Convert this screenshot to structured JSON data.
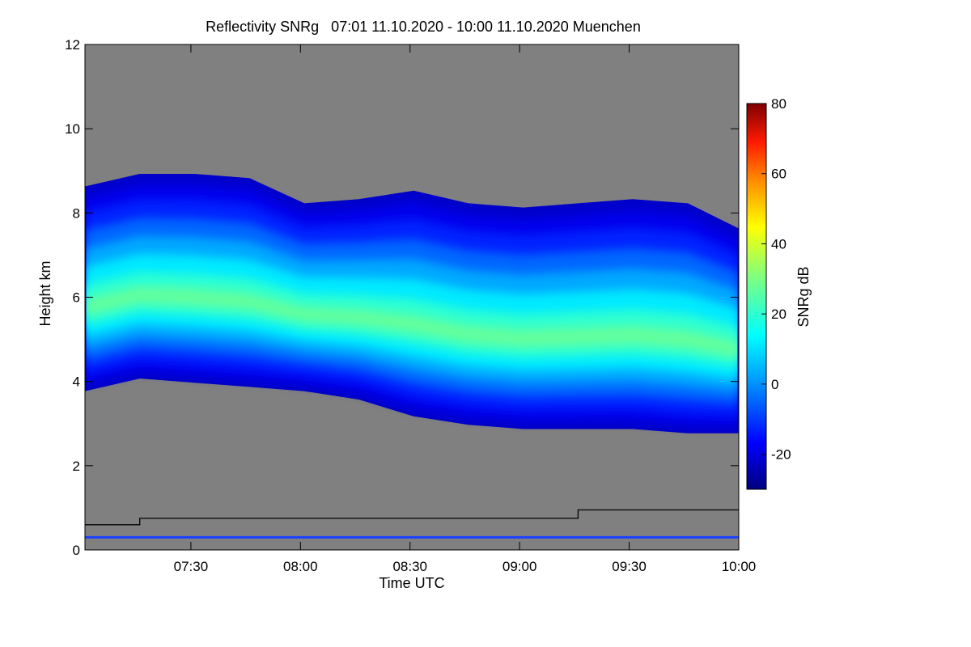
{
  "chart_data": {
    "type": "heatmap",
    "title": "Reflectivity SNRg   07:01 11.10.2020 - 10:00 11.10.2020 Muenchen",
    "xlabel": "Time UTC",
    "ylabel": "Height km",
    "x_range": [
      "07:01",
      "10:00"
    ],
    "xlim_minutes": [
      421,
      600
    ],
    "x_ticks": [
      {
        "label": "07:30",
        "minutes": 450
      },
      {
        "label": "08:00",
        "minutes": 480
      },
      {
        "label": "08:30",
        "minutes": 510
      },
      {
        "label": "09:00",
        "minutes": 540
      },
      {
        "label": "09:30",
        "minutes": 570
      },
      {
        "label": "10:00",
        "minutes": 600
      }
    ],
    "ylim": [
      0,
      12
    ],
    "y_ticks": [
      {
        "label": "0",
        "value": 0
      },
      {
        "label": "2",
        "value": 2
      },
      {
        "label": "4",
        "value": 4
      },
      {
        "label": "6",
        "value": 6
      },
      {
        "label": "8",
        "value": 8
      },
      {
        "label": "10",
        "value": 10
      },
      {
        "label": "12",
        "value": 12
      }
    ],
    "colorbar": {
      "label": "SNRg dB",
      "range": [
        -30,
        80
      ],
      "ticks": [
        {
          "label": "-20",
          "value": -20
        },
        {
          "label": "0",
          "value": 0
        },
        {
          "label": "20",
          "value": 20
        },
        {
          "label": "40",
          "value": 40
        },
        {
          "label": "60",
          "value": 60
        },
        {
          "label": "80",
          "value": 80
        }
      ],
      "colormap": "jet"
    },
    "background_color": "#808080",
    "cloud_layer": {
      "times_minutes": [
        421,
        436,
        451,
        466,
        481,
        496,
        511,
        526,
        541,
        556,
        571,
        586,
        600
      ],
      "top_km": [
        8.6,
        8.9,
        8.9,
        8.8,
        8.2,
        8.3,
        8.5,
        8.2,
        8.1,
        8.2,
        8.3,
        8.2,
        7.6
      ],
      "base_km": [
        3.8,
        4.1,
        4.0,
        3.9,
        3.8,
        3.6,
        3.2,
        3.0,
        2.9,
        2.9,
        2.9,
        2.8,
        2.8
      ],
      "peak_snr_db": [
        14,
        17,
        19,
        21,
        23,
        25,
        27,
        26,
        25,
        24,
        23,
        22,
        19
      ]
    },
    "overlay_line": {
      "color": "#000000",
      "steps": [
        {
          "from_minutes": 421,
          "to_minutes": 436,
          "height_km": 0.6
        },
        {
          "from_minutes": 436,
          "to_minutes": 481,
          "height_km": 0.75
        },
        {
          "from_minutes": 481,
          "to_minutes": 556,
          "height_km": 0.75
        },
        {
          "from_minutes": 556,
          "to_minutes": 600,
          "height_km": 0.95
        }
      ]
    },
    "ground_clutter_line": {
      "color": "#1a40ff",
      "height_km": 0.3
    }
  }
}
